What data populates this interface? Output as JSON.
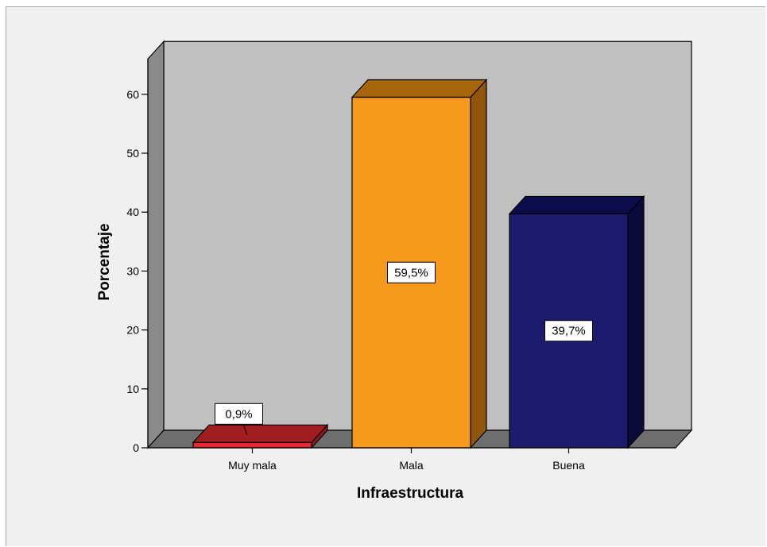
{
  "chart_data": {
    "type": "bar",
    "categories": [
      "Muy mala",
      "Mala",
      "Buena"
    ],
    "values": [
      0.9,
      59.5,
      39.7
    ],
    "data_labels": [
      "0,9%",
      "59,5%",
      "39,7%"
    ],
    "xlabel": "Infraestructura",
    "ylabel": "Porcentaje",
    "ylim": [
      0,
      66
    ],
    "yticks": [
      0,
      10,
      20,
      30,
      40,
      50,
      60
    ],
    "ytick_labels": [
      "0",
      "10",
      "20",
      "30",
      "40",
      "50",
      "60"
    ],
    "grid": false,
    "style": "3d",
    "colors": {
      "bars": [
        "#e8262f",
        "#f7991d",
        "#1c1b6e"
      ],
      "bar_tops": [
        "#a21d20",
        "#a6650b",
        "#0d0c4a"
      ],
      "bar_sides": [
        "#8e1a1c",
        "#8f560c",
        "#0b0a3c"
      ],
      "back_wall": "#c0c0c0",
      "side_wall": "#8a8a8a",
      "floor": "#6e6e6e",
      "background": "#f0f0f0"
    }
  }
}
